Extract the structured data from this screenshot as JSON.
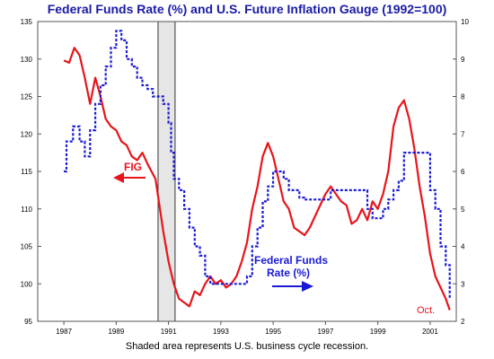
{
  "chart_data": {
    "type": "line",
    "title": "Federal Funds Rate (%) and U.S. Future Inflation Gauge (1992=100)",
    "footnote": "Shaded area represents U.S. business cycle recession.",
    "x_ticks": [
      "1987",
      "1989",
      "1991",
      "1993",
      "1995",
      "1997",
      "1999",
      "2001"
    ],
    "xlim": [
      1986.0,
      2002.0
    ],
    "left_axis": {
      "ticks": [
        "95",
        "100",
        "105",
        "110",
        "115",
        "120",
        "125",
        "130",
        "135"
      ],
      "ylim": [
        95,
        135
      ]
    },
    "right_axis": {
      "ticks": [
        "2",
        "3",
        "4",
        "5",
        "6",
        "7",
        "8",
        "9",
        "10"
      ],
      "ylim": [
        2,
        10
      ]
    },
    "grid": false,
    "recession": [
      1990.6,
      1991.25
    ],
    "annotations": {
      "fig": "FIG",
      "fed_line1": "Federal Funds",
      "fed_line2": "Rate (%)",
      "oct": "Oct."
    },
    "colors": {
      "fig": "#e8141b",
      "fed_funds": "#1a1ad6",
      "title": "#1a1aa6",
      "recession": "#e6e6e6"
    },
    "series": [
      {
        "axis": "left",
        "x": [
          1987.0,
          1987.2,
          1987.4,
          1987.6,
          1987.8,
          1988.0,
          1988.2,
          1988.4,
          1988.6,
          1988.8,
          1989.0,
          1989.2,
          1989.4,
          1989.6,
          1989.8,
          1990.0,
          1990.2,
          1990.5,
          1990.8,
          1991.0,
          1991.2,
          1991.4,
          1991.6,
          1991.8,
          1992.0,
          1992.2,
          1992.4,
          1992.6,
          1992.8,
          1993.0,
          1993.2,
          1993.4,
          1993.6,
          1993.8,
          1994.0,
          1994.2,
          1994.4,
          1994.6,
          1994.8,
          1995.0,
          1995.2,
          1995.4,
          1995.6,
          1995.8,
          1996.0,
          1996.2,
          1996.4,
          1996.6,
          1996.8,
          1997.0,
          1997.2,
          1997.4,
          1997.6,
          1997.8,
          1998.0,
          1998.2,
          1998.4,
          1998.6,
          1998.8,
          1999.0,
          1999.2,
          1999.4,
          1999.6,
          1999.8,
          2000.0,
          2000.2,
          2000.4,
          2000.6,
          2000.8,
          2001.0,
          2001.2,
          2001.4,
          2001.6,
          2001.75
        ],
        "values": [
          129.8,
          129.5,
          131.5,
          130.5,
          127.5,
          124.0,
          127.5,
          125.0,
          122.0,
          121.0,
          120.5,
          119.0,
          118.5,
          117.0,
          116.5,
          117.5,
          116.0,
          114.0,
          107.0,
          103.0,
          100.0,
          98.0,
          97.5,
          97.0,
          99.0,
          98.5,
          100.0,
          101.0,
          100.0,
          100.5,
          99.5,
          100.0,
          101.0,
          103.0,
          105.5,
          110.0,
          113.0,
          117.0,
          118.8,
          117.0,
          114.0,
          111.0,
          110.0,
          107.5,
          107.0,
          106.5,
          107.5,
          109.0,
          110.5,
          112.0,
          113.0,
          112.0,
          111.0,
          110.5,
          108.0,
          108.5,
          110.0,
          108.5,
          111.0,
          110.0,
          112.0,
          115.0,
          121.0,
          123.5,
          124.5,
          122.0,
          118.0,
          113.0,
          109.0,
          104.0,
          101.0,
          99.5,
          98.0,
          96.5
        ]
      },
      {
        "axis": "right",
        "x": [
          1987.0,
          1987.1,
          1987.35,
          1987.6,
          1987.8,
          1988.0,
          1988.2,
          1988.4,
          1988.6,
          1988.8,
          1989.0,
          1989.2,
          1989.4,
          1989.6,
          1989.8,
          1990.0,
          1990.2,
          1990.4,
          1990.6,
          1990.8,
          1991.0,
          1991.1,
          1991.2,
          1991.4,
          1991.6,
          1991.8,
          1992.0,
          1992.2,
          1992.4,
          1992.6,
          1992.8,
          1993.0,
          1993.2,
          1993.4,
          1993.6,
          1993.8,
          1994.0,
          1994.2,
          1994.4,
          1994.6,
          1994.8,
          1995.0,
          1995.2,
          1995.4,
          1995.6,
          1995.8,
          1996.0,
          1996.2,
          1996.4,
          1996.6,
          1996.8,
          1997.0,
          1997.2,
          1997.4,
          1997.6,
          1997.8,
          1998.0,
          1998.2,
          1998.4,
          1998.6,
          1998.8,
          1999.0,
          1999.2,
          1999.4,
          1999.6,
          1999.8,
          2000.0,
          2000.2,
          2000.4,
          2000.6,
          2000.8,
          2001.0,
          2001.2,
          2001.4,
          2001.6,
          2001.75
        ],
        "values": [
          6.0,
          6.8,
          7.2,
          6.8,
          6.4,
          7.1,
          7.8,
          8.3,
          8.8,
          9.3,
          9.75,
          9.5,
          9.0,
          8.8,
          8.5,
          8.3,
          8.2,
          8.0,
          8.0,
          7.8,
          7.3,
          6.5,
          5.8,
          5.5,
          5.0,
          4.5,
          4.0,
          3.75,
          3.2,
          3.0,
          3.0,
          3.0,
          3.0,
          3.0,
          3.0,
          3.0,
          3.2,
          4.0,
          4.5,
          5.2,
          5.6,
          6.0,
          6.0,
          5.8,
          5.5,
          5.5,
          5.3,
          5.25,
          5.25,
          5.25,
          5.25,
          5.25,
          5.5,
          5.5,
          5.5,
          5.5,
          5.5,
          5.5,
          5.5,
          5.0,
          4.75,
          4.75,
          5.0,
          5.25,
          5.5,
          5.75,
          6.5,
          6.5,
          6.5,
          6.5,
          6.5,
          5.5,
          5.0,
          4.0,
          3.5,
          2.6
        ]
      }
    ]
  }
}
